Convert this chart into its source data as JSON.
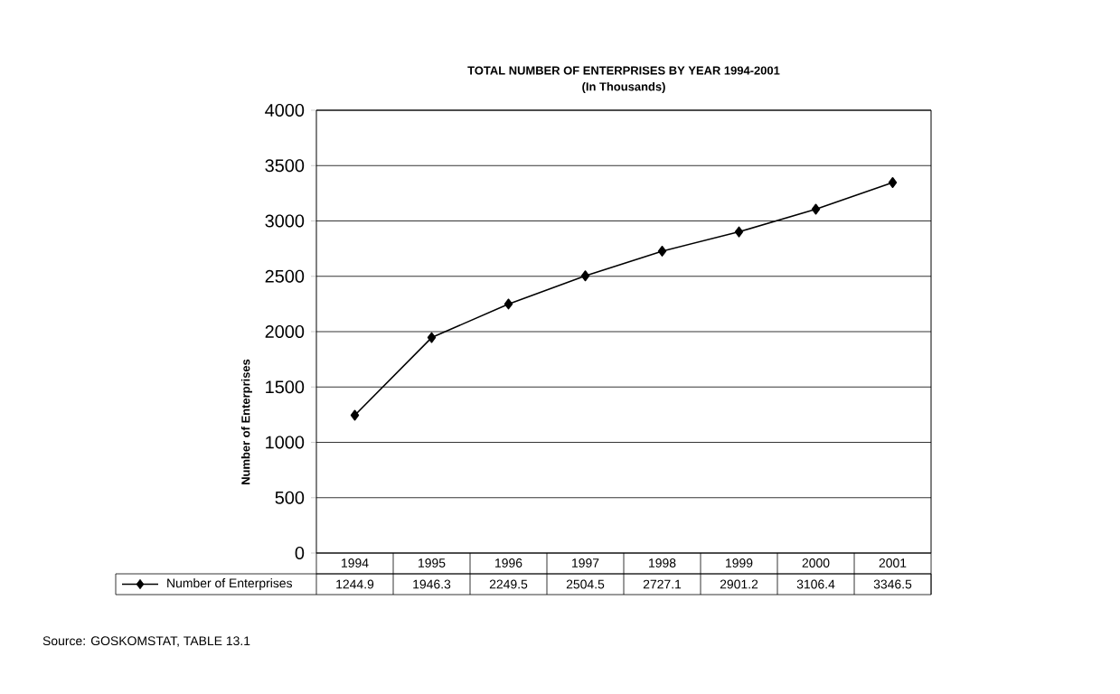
{
  "chart_data": {
    "type": "line",
    "title": "TOTAL NUMBER OF ENTERPRISES BY YEAR 1994-2001",
    "subtitle": "(In Thousands)",
    "ylabel": "Number of Enterprises",
    "annotations": [
      "Source: GOSKOMSTAT, TABLE 13.1"
    ],
    "categories": [
      "1994",
      "1995",
      "1996",
      "1997",
      "1998",
      "1999",
      "2000",
      "2001"
    ],
    "series": [
      {
        "name": "Number of Enterprises",
        "color": "#000000",
        "values": [
          1244.9,
          1946.3,
          2249.5,
          2504.5,
          2727.1,
          2901.2,
          3106.4,
          3346.5
        ]
      }
    ],
    "ylim": [
      0,
      4000
    ],
    "yticks": [
      0,
      500,
      1000,
      1500,
      2000,
      2500,
      3000,
      3500,
      4000
    ],
    "grid": "y",
    "legend": "bottom",
    "marker": "diamond",
    "data_labels": true
  }
}
